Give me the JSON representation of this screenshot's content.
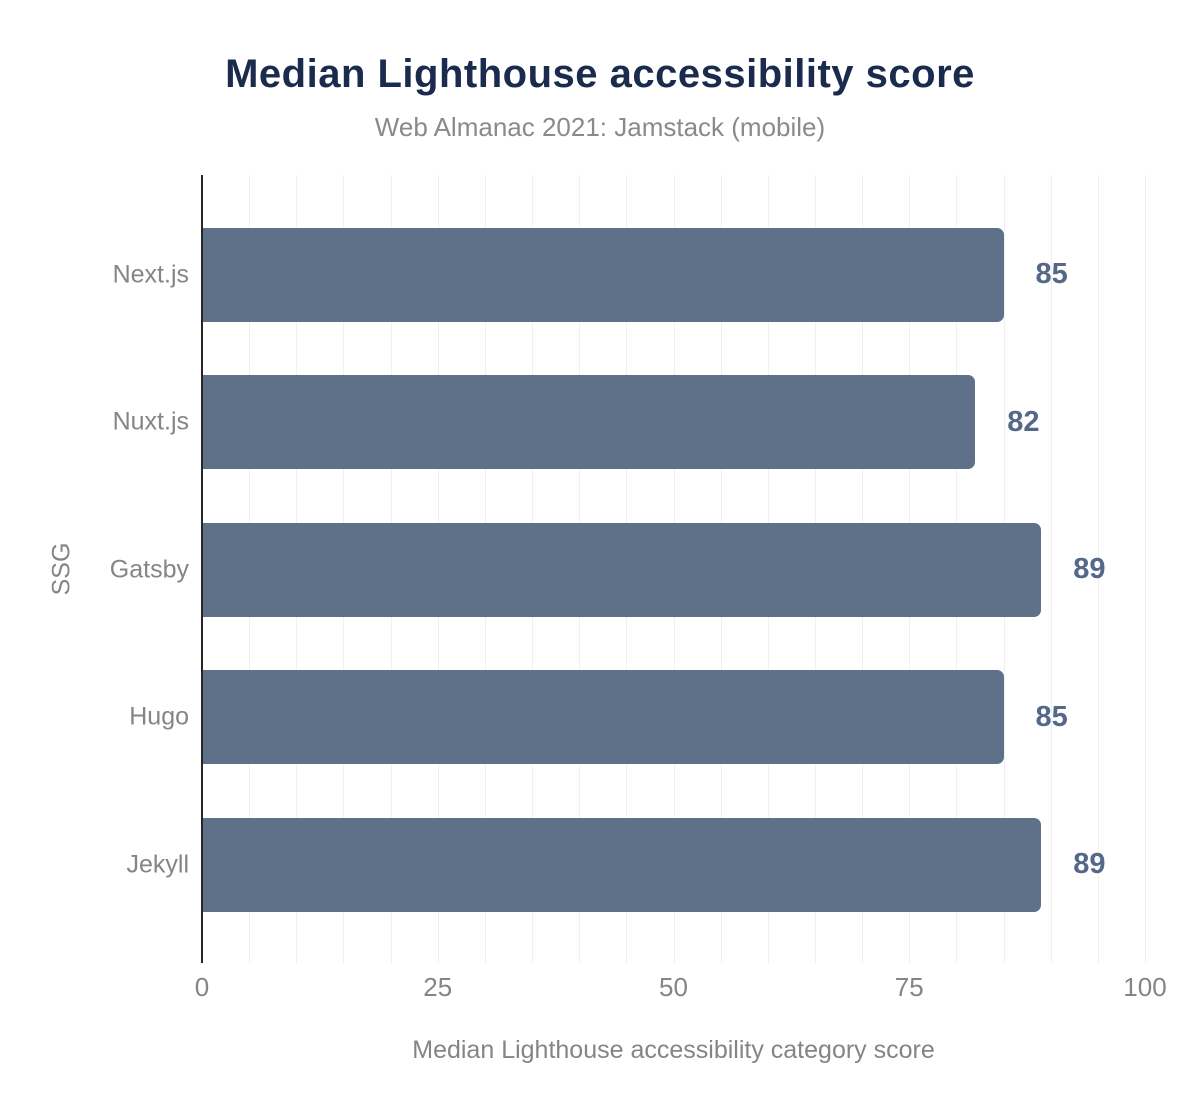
{
  "chart_data": {
    "type": "bar",
    "orientation": "horizontal",
    "title": "Median Lighthouse accessibility score",
    "subtitle": "Web Almanac 2021: Jamstack (mobile)",
    "categories": [
      "Next.js",
      "Nuxt.js",
      "Gatsby",
      "Hugo",
      "Jekyll"
    ],
    "values": [
      85,
      82,
      89,
      85,
      89
    ],
    "xlabel": "Median Lighthouse accessibility category score",
    "ylabel": "SSG",
    "xlim": [
      0,
      100
    ],
    "xticks": [
      0,
      25,
      50,
      75,
      100
    ],
    "minor_grid_step": 5,
    "grid": true,
    "legend": "none",
    "colors": {
      "bar": "#5f7089",
      "value_label": "#556889",
      "title": "#1a2b4e",
      "subtitle": "#8a8a8a",
      "axis_text": "#858585",
      "axis_line": "#262626",
      "gridline": "#f0f0f0",
      "background": "#ffffff"
    }
  }
}
